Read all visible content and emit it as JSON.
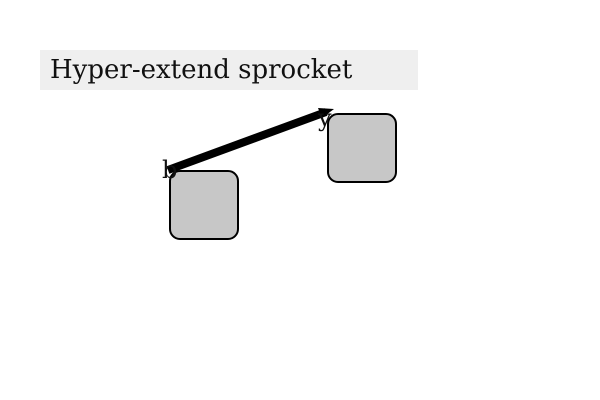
{
  "title": {
    "text": "Hyper-extend sprocket",
    "background": "#efefef"
  },
  "nodes": [
    {
      "id": "b",
      "label": "b",
      "fill": "#c7c7c7",
      "stroke": "#000000"
    },
    {
      "id": "y",
      "label": "y",
      "fill": "#c7c7c7",
      "stroke": "#000000"
    }
  ],
  "connector": {
    "from": "b",
    "to": "y",
    "color": "#000000"
  }
}
